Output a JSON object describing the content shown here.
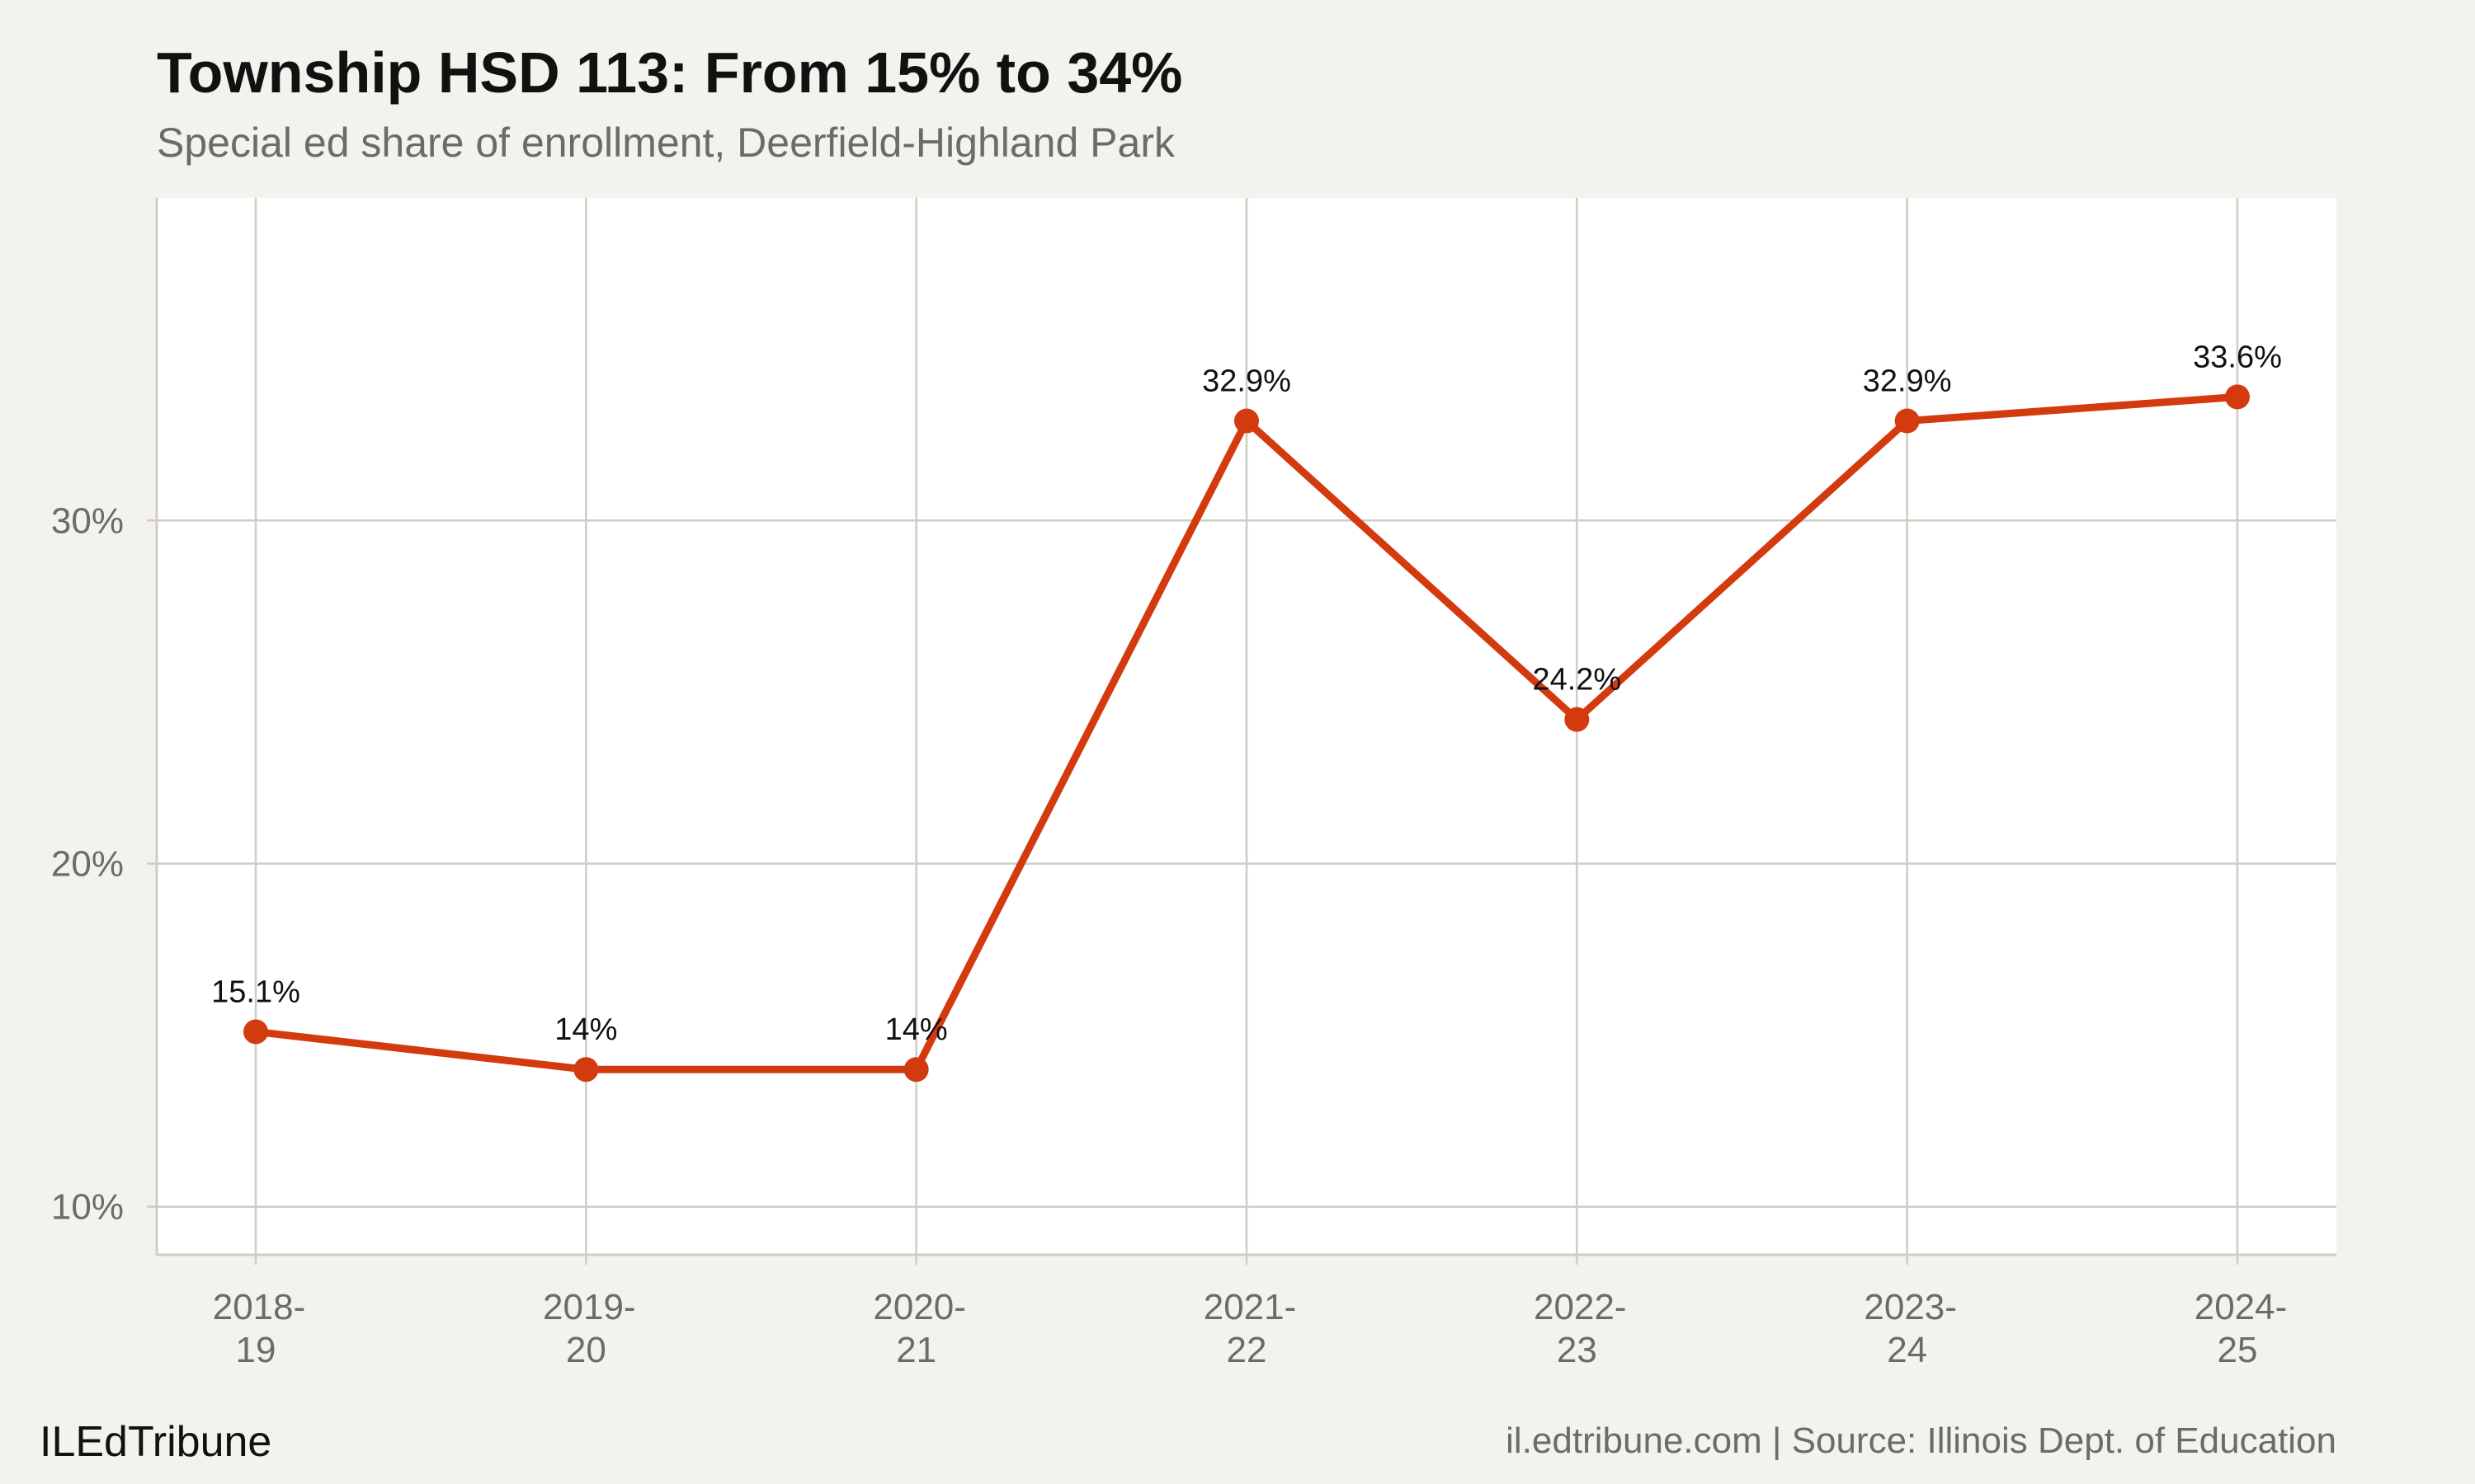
{
  "chart_data": {
    "type": "line",
    "title": "Township HSD 113: From 15% to 34%",
    "subtitle": "Special ed share of enrollment, Deerfield-Highland Park",
    "categories": [
      [
        "2018-",
        "19"
      ],
      [
        "2019-",
        "20"
      ],
      [
        "2020-",
        "21"
      ],
      [
        "2021-",
        "22"
      ],
      [
        "2022-",
        "23"
      ],
      [
        "2023-",
        "24"
      ],
      [
        "2024-",
        "25"
      ]
    ],
    "values": [
      15.1,
      14.0,
      14.0,
      32.9,
      24.2,
      32.9,
      33.6
    ],
    "data_labels": [
      "15.1%",
      "14%",
      "14%",
      "32.9%",
      "24.2%",
      "32.9%",
      "33.6%"
    ],
    "y_ticks": [
      10,
      20,
      30
    ],
    "y_tick_labels": [
      "10%",
      "20%",
      "30%"
    ],
    "ylim": [
      8.6,
      39.4
    ],
    "xlabel": "",
    "ylabel": "",
    "grid": true,
    "legend": "none"
  },
  "footer": {
    "brand": "ILEdTribune",
    "source": "il.edtribune.com | Source: Illinois Dept. of Education"
  },
  "colors": {
    "background": "#f4f2ed",
    "panel": "#ffffff",
    "grid": "#cfccc4",
    "series": "#d33b0f"
  }
}
